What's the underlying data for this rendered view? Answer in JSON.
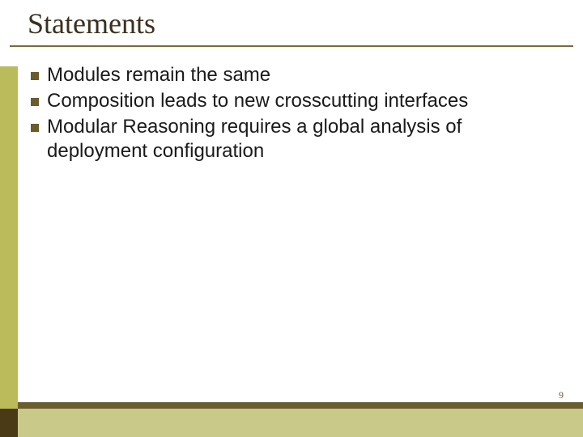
{
  "slide": {
    "title": "Statements",
    "title_fontsize": 36,
    "title_color": "#3a301f",
    "underline_color": "#7a6a3a",
    "bullets": [
      "Modules remain the same",
      "Composition leads to new crosscutting interfaces",
      "Modular Reasoning requires a global analysis of deployment configuration"
    ],
    "bullet_fontsize": 24,
    "bullet_text_color": "#1a1a1a",
    "bullet_marker_color": "#6b5c2e",
    "page_number": "9",
    "page_number_fontsize": 12,
    "colors": {
      "left_stripe_olive": "#bcbb5c",
      "left_stripe_dark": "#4a3a15",
      "bottom_band": "#c9c98a",
      "bottom_band_top": "#6b5c2e",
      "background": "#ffffff"
    }
  }
}
